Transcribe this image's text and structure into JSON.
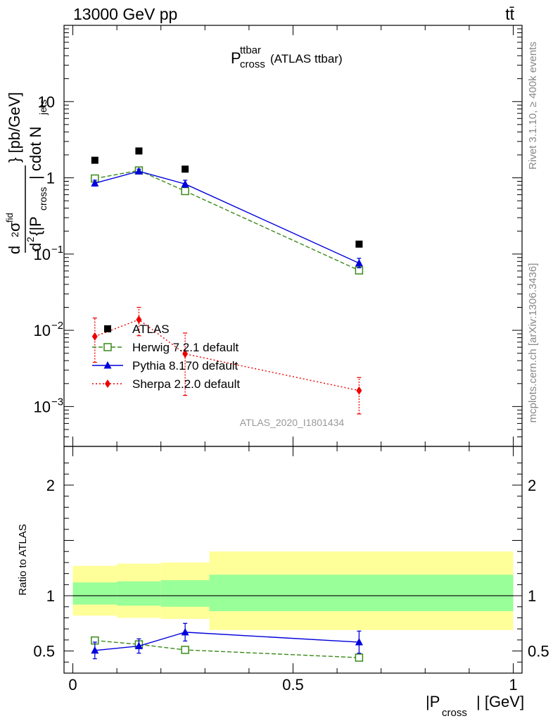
{
  "header": {
    "collision": "13000 GeV pp",
    "process": "tt̄"
  },
  "plot_title": {
    "main": "P",
    "sup": "ttbar",
    "sub": "cross",
    "suffix": "(ATLAS ttbar)"
  },
  "ylabel_main": {
    "d": "d",
    "two": "2",
    "sigma_fid": "σ",
    "fid_sup": "fid",
    "den_d": "d",
    "den_two": "2",
    "den_brace": "{|P",
    "den_sub": "cross",
    "den_rest": "| cdot N",
    "den_jets": "jets",
    "den_close": "}",
    "unit": "} [pb/GeV]"
  },
  "side_labels": {
    "rivet": "Rivet 3.1.10, ≥ 400k events",
    "mcplots": "mcplots.cern.ch [arXiv:1306.3436]"
  },
  "analysis_tag": "ATLAS_2020_I1801434",
  "ratio_ylabel": "Ratio to ATLAS",
  "xlabel": {
    "pre": "|P",
    "sub": "cross",
    "post": "| [GeV]"
  },
  "colors": {
    "atlas": "#000000",
    "herwig": "#3a8a1a",
    "pythia": "#0000dd",
    "sherpa": "#ee0000",
    "band_inner": "#99ff99",
    "band_outer": "#ffff99"
  },
  "chart_data": [
    {
      "type": "scatter",
      "panel": "main",
      "yscale": "log",
      "xlim": [
        -0.02,
        1.02
      ],
      "ylim": [
        0.0003,
        100
      ],
      "y_ticks": [
        {
          "value": 0.001,
          "base": "10",
          "exp": "−3"
        },
        {
          "value": 0.01,
          "base": "10",
          "exp": "−2"
        },
        {
          "value": 0.1,
          "base": "10",
          "exp": "−1"
        },
        {
          "value": 1,
          "base": "1",
          "exp": ""
        },
        {
          "value": 10,
          "base": "10",
          "exp": ""
        }
      ],
      "x": [
        0.05,
        0.15,
        0.255,
        0.65
      ],
      "x_edges": [
        0.0,
        0.1,
        0.2,
        0.31,
        1.0
      ],
      "series": [
        {
          "name": "ATLAS",
          "key": "atlas",
          "marker": "square",
          "line": "none",
          "y": [
            1.7,
            2.25,
            1.3,
            0.135
          ]
        },
        {
          "name": "Herwig 7.2.1 default",
          "key": "herwig",
          "marker": "open-square",
          "line": "dashed",
          "y": [
            0.98,
            1.25,
            0.67,
            0.061
          ],
          "err_lo": [
            0.9,
            1.18,
            0.62,
            0.056
          ],
          "err_hi": [
            1.05,
            1.32,
            0.72,
            0.066
          ]
        },
        {
          "name": "Pythia 8.170 default",
          "key": "pythia",
          "marker": "triangle",
          "line": "solid",
          "y": [
            0.85,
            1.22,
            0.83,
            0.076
          ],
          "err_lo": [
            0.78,
            1.15,
            0.75,
            0.066
          ],
          "err_hi": [
            0.93,
            1.3,
            0.93,
            0.088
          ]
        },
        {
          "name": "Sherpa 2.2.0 default",
          "key": "sherpa",
          "marker": "diamond",
          "line": "dotted",
          "y": [
            0.0083,
            0.0138,
            0.0049,
            0.00162
          ],
          "err_lo": [
            0.0038,
            0.0085,
            0.0014,
            0.0008
          ],
          "err_hi": [
            0.0145,
            0.02,
            0.0092,
            0.0024
          ]
        }
      ]
    },
    {
      "type": "scatter",
      "panel": "ratio",
      "ylabel": "Ratio to ATLAS",
      "xlabel": "|Pcross| [GeV]",
      "xlim": [
        -0.02,
        1.02
      ],
      "ylim": [
        0.3,
        2.35
      ],
      "x_ticks": [
        {
          "value": 0,
          "label": "0"
        },
        {
          "value": 0.5,
          "label": "0.5"
        },
        {
          "value": 1,
          "label": "1"
        }
      ],
      "y_ticks": [
        {
          "value": 0.5,
          "label": "0.5"
        },
        {
          "value": 1,
          "label": "1"
        },
        {
          "value": 2,
          "label": "2"
        }
      ],
      "bands": [
        {
          "x0": 0.0,
          "x1": 0.1,
          "inner": [
            0.92,
            1.12
          ],
          "outer": [
            0.82,
            1.27
          ]
        },
        {
          "x0": 0.1,
          "x1": 0.2,
          "inner": [
            0.91,
            1.13
          ],
          "outer": [
            0.8,
            1.29
          ]
        },
        {
          "x0": 0.2,
          "x1": 0.31,
          "inner": [
            0.9,
            1.14
          ],
          "outer": [
            0.79,
            1.3
          ]
        },
        {
          "x0": 0.31,
          "x1": 1.0,
          "inner": [
            0.86,
            1.19
          ],
          "outer": [
            0.69,
            1.4
          ]
        }
      ],
      "x": [
        0.05,
        0.15,
        0.255,
        0.65
      ],
      "series": [
        {
          "key": "herwig",
          "marker": "open-square",
          "line": "dashed",
          "y": [
            0.595,
            0.56,
            0.51,
            0.44
          ],
          "err_lo": [
            0.565,
            0.53,
            0.485,
            0.41
          ],
          "err_hi": [
            0.625,
            0.59,
            0.535,
            0.47
          ]
        },
        {
          "key": "pythia",
          "marker": "triangle",
          "line": "solid",
          "y": [
            0.505,
            0.545,
            0.67,
            0.58
          ],
          "err_lo": [
            0.43,
            0.48,
            0.59,
            0.48
          ],
          "err_hi": [
            0.58,
            0.61,
            0.75,
            0.68
          ]
        }
      ]
    }
  ]
}
